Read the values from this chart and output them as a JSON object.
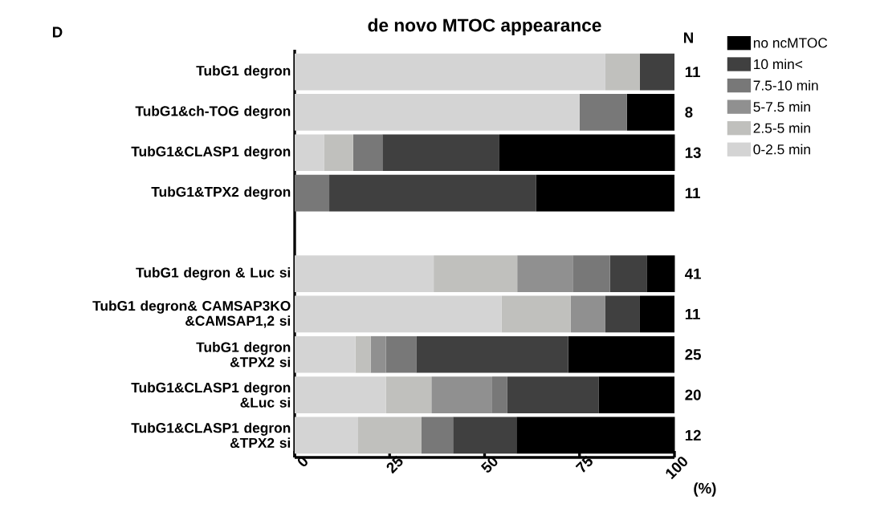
{
  "chart_data": {
    "type": "bar",
    "orientation": "horizontal",
    "stacked": true,
    "title": "de novo MTOC appearance",
    "xlabel": "(%)",
    "categories": [
      "TubG1 degron",
      "TubG1&ch-TOG degron",
      "TubG1&CLASP1 degron",
      "TubG1&TPX2 degron",
      null,
      "TubG1 degron & Luc si",
      "TubG1 degron& CAMSAP3KO\n&CAMSAP1,2 si",
      "TubG1 degron\n&TPX2 si",
      "TubG1&CLASP1 degron\n&Luc si",
      "TubG1&CLASP1 degron\n&TPX2 si"
    ],
    "series": [
      {
        "name": "0-2.5 min",
        "color": "#d4d4d4",
        "values": [
          81.8,
          75,
          7.7,
          0,
          null,
          36.6,
          54.5,
          16,
          24,
          16.7
        ]
      },
      {
        "name": "2.5-5 min",
        "color": "#c0c0bd",
        "values": [
          9.1,
          0,
          7.7,
          0,
          null,
          22.0,
          18.2,
          4,
          12,
          16.7
        ]
      },
      {
        "name": "5-7.5 min",
        "color": "#909090",
        "values": [
          0,
          0,
          0,
          0,
          null,
          14.6,
          9.1,
          4,
          16,
          0
        ]
      },
      {
        "name": "7.5-10 min",
        "color": "#787878",
        "values": [
          0,
          12.5,
          7.7,
          9.1,
          null,
          9.8,
          0,
          8,
          4,
          8.3
        ]
      },
      {
        "name": "10 min<",
        "color": "#404040",
        "values": [
          9.1,
          0,
          30.8,
          54.5,
          null,
          9.8,
          9.1,
          40,
          24,
          16.7
        ]
      },
      {
        "name": "no ncMTOC",
        "color": "#000000",
        "values": [
          0,
          12.5,
          46.2,
          36.4,
          null,
          7.3,
          9.1,
          28,
          20,
          41.7
        ]
      }
    ],
    "xlim": [
      0,
      100
    ],
    "xticks": [
      0,
      25,
      50,
      75,
      100
    ],
    "legend": "top right",
    "annotations": [
      "D",
      "N",
      "11",
      "8",
      "13",
      "11",
      "41",
      "11",
      "25",
      "20",
      "12"
    ]
  }
}
